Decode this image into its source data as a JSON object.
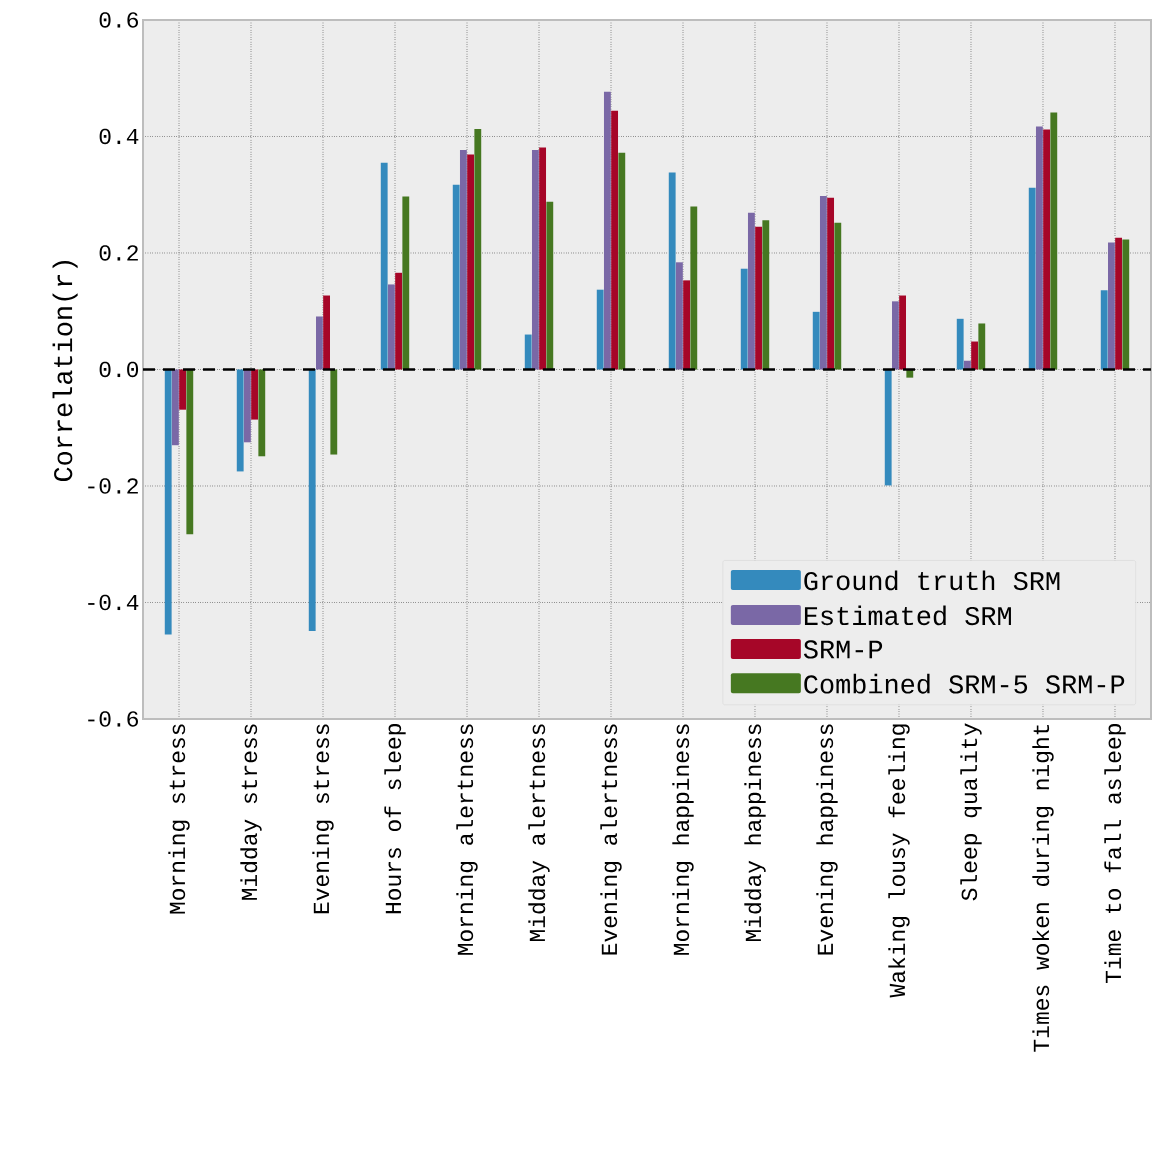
{
  "chart_data": {
    "type": "bar",
    "ylabel": "Correlation(r)",
    "categories": [
      "Morning stress",
      "Midday stress",
      "Evening stress",
      "Hours of sleep",
      "Morning alertness",
      "Midday alertness",
      "Evening alertness",
      "Morning happiness",
      "Midday happiness",
      "Evening happiness",
      "Waking lousy feeling",
      "Sleep quality",
      "Times woken during night",
      "Time to fall asleep"
    ],
    "series": [
      {
        "name": "Ground truth SRM",
        "color": "#348abd",
        "values": [
          -0.455,
          -0.175,
          -0.449,
          0.355,
          0.317,
          0.06,
          0.137,
          0.338,
          0.173,
          0.099,
          -0.199,
          0.087,
          0.312,
          0.136
        ]
      },
      {
        "name": "Estimated SRM",
        "color": "#7a68a6",
        "values": [
          -0.13,
          -0.125,
          0.091,
          0.146,
          0.377,
          0.377,
          0.477,
          0.184,
          0.269,
          0.298,
          0.117,
          0.015,
          0.417,
          0.218
        ]
      },
      {
        "name": "SRM-P",
        "color": "#a60628",
        "values": [
          -0.069,
          -0.086,
          0.127,
          0.166,
          0.369,
          0.381,
          0.444,
          0.153,
          0.245,
          0.295,
          0.127,
          0.048,
          0.412,
          0.226
        ]
      },
      {
        "name": "Combined SRM-5 SRM-P",
        "color": "#467821",
        "values": [
          -0.283,
          -0.149,
          -0.146,
          0.297,
          0.413,
          0.288,
          0.372,
          0.28,
          0.256,
          0.252,
          -0.014,
          0.079,
          0.441,
          0.223
        ]
      }
    ],
    "ylim": [
      -0.6,
      0.6
    ],
    "yticks": [
      -0.6,
      -0.4,
      -0.2,
      {
        "value": 0,
        "label": "0.0"
      },
      0.2,
      0.4,
      0.6
    ],
    "grid": true,
    "legend": "bottom right",
    "ref_lines": [
      {
        "axis": "y",
        "value": 0,
        "color": "#000000",
        "line_style": "dashed"
      }
    ]
  }
}
